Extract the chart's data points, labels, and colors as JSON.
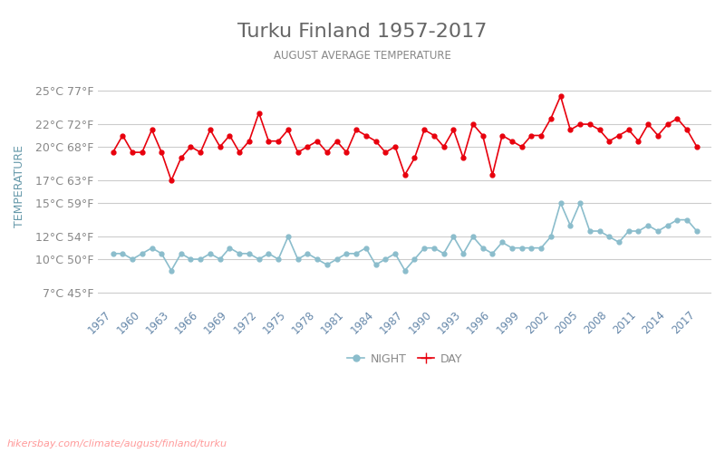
{
  "title": "Turku Finland 1957-2017",
  "subtitle": "AUGUST AVERAGE TEMPERATURE",
  "ylabel": "TEMPERATURE",
  "xlabel_url": "hikersbay.com/climate/august/finland/turku",
  "years": [
    1957,
    1958,
    1959,
    1960,
    1961,
    1962,
    1963,
    1964,
    1965,
    1966,
    1967,
    1968,
    1969,
    1970,
    1971,
    1972,
    1973,
    1974,
    1975,
    1976,
    1977,
    1978,
    1979,
    1980,
    1981,
    1982,
    1983,
    1984,
    1985,
    1986,
    1987,
    1988,
    1989,
    1990,
    1991,
    1992,
    1993,
    1994,
    1995,
    1996,
    1997,
    1998,
    1999,
    2000,
    2001,
    2002,
    2003,
    2004,
    2005,
    2006,
    2007,
    2008,
    2009,
    2010,
    2011,
    2012,
    2013,
    2014,
    2015,
    2016,
    2017
  ],
  "day_temps": [
    19.5,
    21.0,
    19.5,
    19.5,
    21.5,
    19.5,
    17.0,
    19.0,
    20.0,
    19.5,
    21.5,
    20.0,
    21.0,
    19.5,
    20.5,
    23.0,
    20.5,
    20.5,
    21.5,
    19.5,
    20.0,
    20.5,
    19.5,
    20.5,
    19.5,
    21.5,
    21.0,
    20.5,
    19.5,
    20.0,
    17.5,
    19.0,
    21.5,
    21.0,
    20.0,
    21.5,
    19.0,
    22.0,
    21.0,
    17.5,
    21.0,
    20.5,
    20.0,
    21.0,
    21.0,
    22.5,
    24.5,
    21.5,
    22.0,
    22.0,
    21.5,
    20.5,
    21.0,
    21.5,
    20.5,
    22.0,
    21.0,
    22.0,
    22.5,
    21.5,
    20.0
  ],
  "night_temps": [
    10.5,
    10.5,
    10.0,
    10.5,
    11.0,
    10.5,
    9.0,
    10.5,
    10.0,
    10.0,
    10.5,
    10.0,
    11.0,
    10.5,
    10.5,
    10.0,
    10.5,
    10.0,
    12.0,
    10.0,
    10.5,
    10.0,
    9.5,
    10.0,
    10.5,
    10.5,
    11.0,
    9.5,
    10.0,
    10.5,
    9.0,
    10.0,
    11.0,
    11.0,
    10.5,
    12.0,
    10.5,
    12.0,
    11.0,
    10.5,
    11.5,
    11.0,
    11.0,
    11.0,
    11.0,
    12.0,
    15.0,
    13.0,
    15.0,
    12.5,
    12.5,
    12.0,
    11.5,
    12.5,
    12.5,
    13.0,
    12.5,
    13.0,
    13.5,
    13.5,
    12.5
  ],
  "day_color": "#e8000d",
  "night_color": "#8bbdcc",
  "grid_color": "#cccccc",
  "title_color": "#666666",
  "subtitle_color": "#888888",
  "ylabel_color": "#6699aa",
  "tick_color": "#888888",
  "url_color": "#ff9999",
  "yticks_c": [
    7,
    10,
    12,
    15,
    17,
    20,
    22,
    25
  ],
  "yticks_f": [
    45,
    50,
    54,
    59,
    63,
    68,
    72,
    77
  ],
  "ylim": [
    6,
    27
  ],
  "background_color": "#ffffff"
}
